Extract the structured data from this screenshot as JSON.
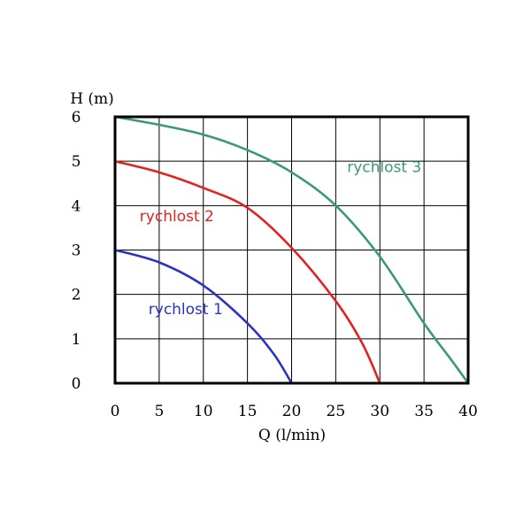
{
  "chart_data": {
    "type": "line",
    "ylabel": "H (m)",
    "xlabel": "Q (l/min)",
    "xlim": [
      0,
      40
    ],
    "ylim": [
      0,
      6
    ],
    "x_ticks": [
      0,
      5,
      10,
      15,
      20,
      25,
      30,
      35,
      40
    ],
    "y_ticks": [
      0,
      1,
      2,
      3,
      4,
      5,
      6
    ],
    "grid": true,
    "legend": "inline labels",
    "series": [
      {
        "name": "rychlost 1",
        "color": "#2a33c4",
        "x": [
          0,
          5,
          10,
          15,
          18,
          20
        ],
        "y": [
          3.0,
          2.72,
          2.2,
          1.35,
          0.65,
          0.0
        ]
      },
      {
        "name": "rychlost 2",
        "color": "#e0231f",
        "x": [
          0,
          5,
          10,
          15,
          20,
          25,
          28,
          30
        ],
        "y": [
          5.0,
          4.75,
          4.4,
          3.95,
          3.05,
          1.85,
          0.9,
          0.0
        ]
      },
      {
        "name": "rychlost 3",
        "color": "#3a9a74",
        "x": [
          0,
          5,
          10,
          15,
          20,
          25,
          30,
          35,
          38,
          40
        ],
        "y": [
          6.0,
          5.82,
          5.6,
          5.25,
          4.75,
          4.0,
          2.85,
          1.35,
          0.55,
          0.0
        ]
      }
    ]
  }
}
